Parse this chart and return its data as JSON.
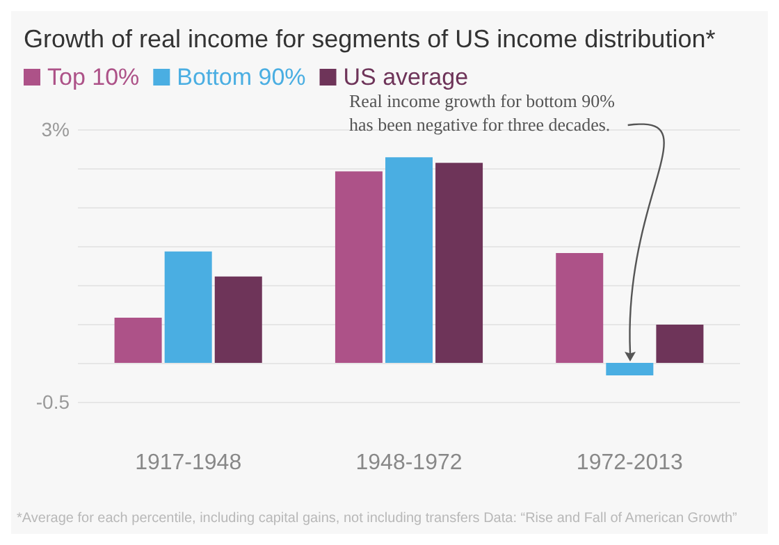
{
  "chart_data": {
    "type": "bar",
    "title": "Growth of real income for segments of US income distribution*",
    "categories": [
      "1917-1948",
      "1948-1972",
      "1972-2013"
    ],
    "series": [
      {
        "name": "Top 10%",
        "color": "#ad5288",
        "values": [
          0.58,
          2.46,
          1.41
        ]
      },
      {
        "name": "Bottom 90%",
        "color": "#4aaee2",
        "values": [
          1.43,
          2.64,
          -0.16
        ]
      },
      {
        "name": "US average",
        "color": "#6e3459",
        "values": [
          1.11,
          2.57,
          0.49
        ]
      }
    ],
    "ylim": [
      -0.5,
      3
    ],
    "yticks": [
      {
        "value": -0.5,
        "label": "-0.5"
      },
      {
        "value": 0,
        "label": null
      },
      {
        "value": 0.5,
        "label": null
      },
      {
        "value": 1,
        "label": null
      },
      {
        "value": 1.5,
        "label": null
      },
      {
        "value": 2,
        "label": null
      },
      {
        "value": 2.5,
        "label": null
      },
      {
        "value": 3,
        "label": "3%"
      }
    ],
    "grid": "y",
    "legend": "top left",
    "annotations": [
      "Real income growth for bottom 90%\nhas been negative for three decades.",
      "*Average for each percentile, including capital gains, not including transfers Data: “Rise and Fall of American Growth”"
    ]
  }
}
